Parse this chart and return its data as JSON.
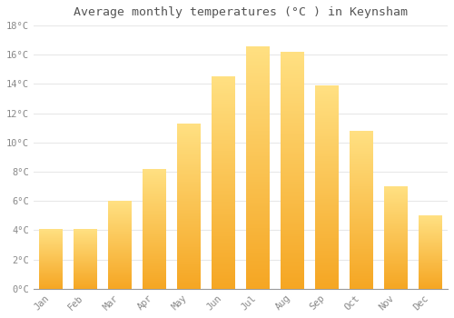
{
  "title": "Average monthly temperatures (°C ) in Keynsham",
  "months": [
    "Jan",
    "Feb",
    "Mar",
    "Apr",
    "May",
    "Jun",
    "Jul",
    "Aug",
    "Sep",
    "Oct",
    "Nov",
    "Dec"
  ],
  "values": [
    4.1,
    4.1,
    6.0,
    8.2,
    11.3,
    14.5,
    16.6,
    16.2,
    13.9,
    10.8,
    7.0,
    5.0
  ],
  "bar_color_bottom": "#F5A623",
  "bar_color_top": "#FFE082",
  "background_color": "#FFFFFF",
  "grid_color": "#E8E8E8",
  "tick_label_color": "#888888",
  "title_color": "#555555",
  "ylim": [
    0,
    18
  ],
  "yticks": [
    0,
    2,
    4,
    6,
    8,
    10,
    12,
    14,
    16,
    18
  ],
  "ytick_labels": [
    "0°C",
    "2°C",
    "4°C",
    "6°C",
    "8°C",
    "10°C",
    "12°C",
    "14°C",
    "16°C",
    "18°C"
  ],
  "bar_width": 0.7,
  "figsize": [
    5.0,
    3.5
  ],
  "dpi": 100
}
